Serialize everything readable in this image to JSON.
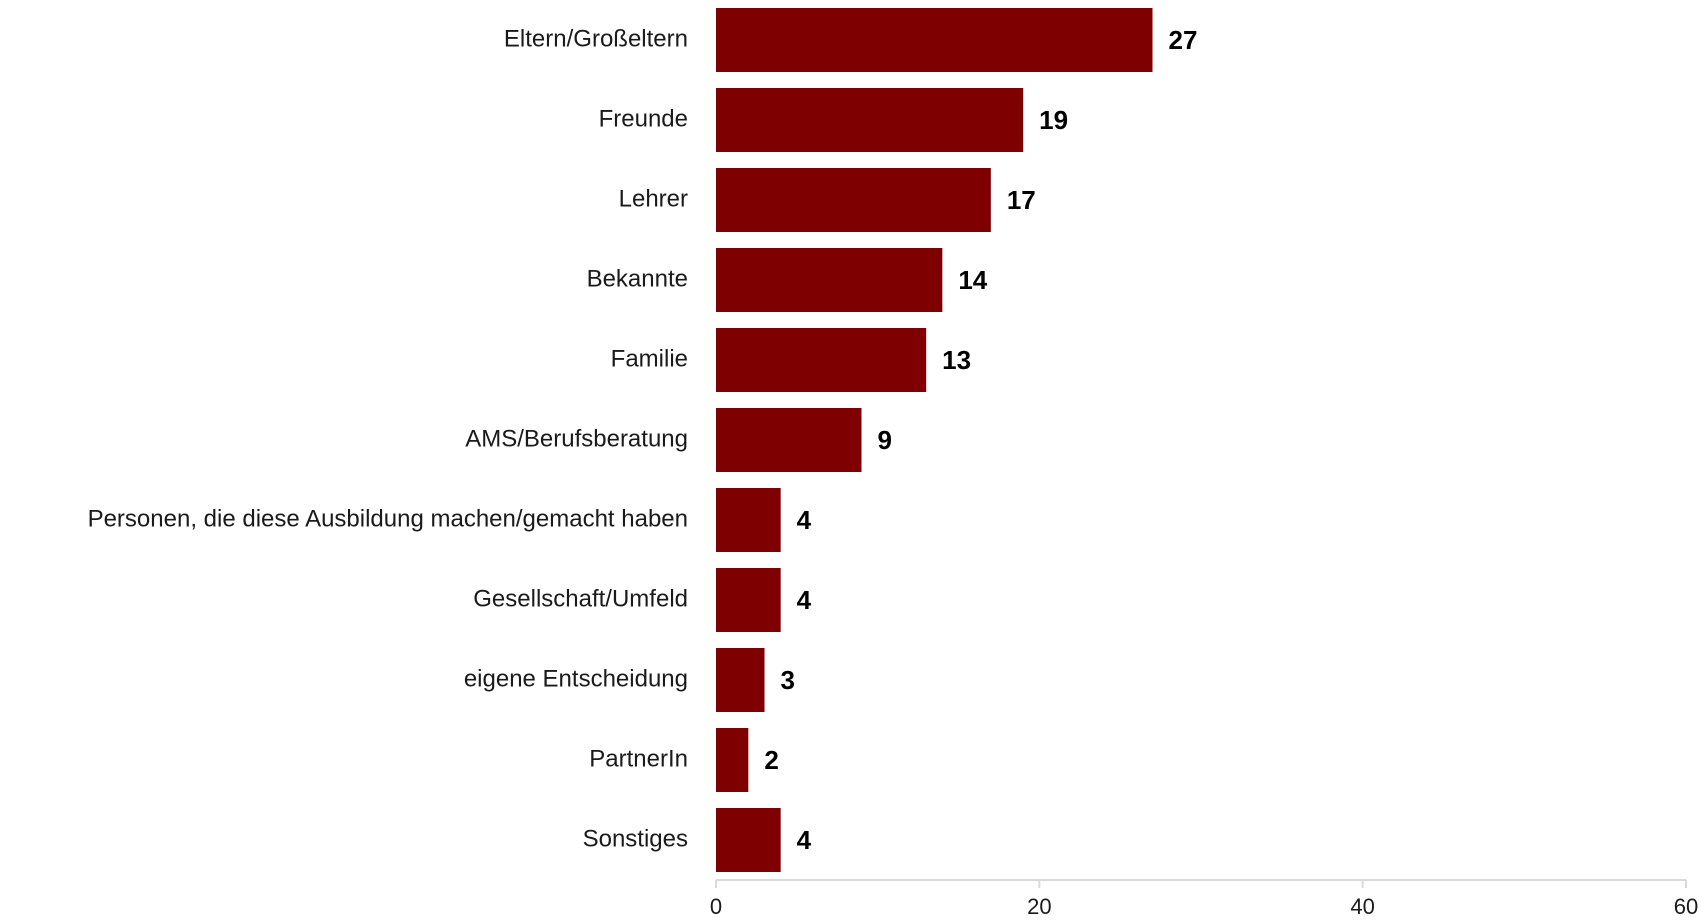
{
  "chart_data": {
    "type": "bar",
    "orientation": "horizontal",
    "categories": [
      "Eltern/Großeltern",
      "Freunde",
      "Lehrer",
      "Bekannte",
      "Familie",
      "AMS/Berufsberatung",
      "Personen, die diese Ausbildung machen/gemacht haben",
      "Gesellschaft/Umfeld",
      "eigene Entscheidung",
      "PartnerIn",
      "Sonstiges"
    ],
    "values": [
      27,
      19,
      17,
      14,
      13,
      9,
      4,
      4,
      3,
      2,
      4
    ],
    "xlim": [
      0,
      60
    ],
    "xticks": [
      0,
      20,
      40,
      60
    ],
    "grid": false,
    "data_labels": true,
    "bar_color": "#7f0000"
  }
}
